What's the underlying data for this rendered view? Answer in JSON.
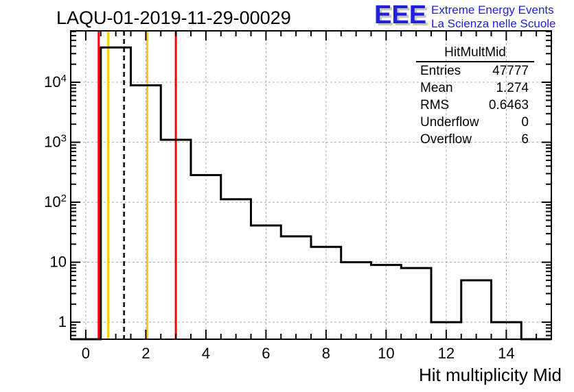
{
  "logo": {
    "acronym": "EEE",
    "line1": "Extreme Energy Events",
    "line2": "La Scienza nelle Scuole",
    "color": "#2020dd",
    "shadow_color": "#c6c6c6"
  },
  "stats": {
    "title": "HitMultMid",
    "rows": [
      {
        "label": "Entries",
        "value": "47777"
      },
      {
        "label": "Mean",
        "value": "1.274"
      },
      {
        "label": "RMS",
        "value": "0.6463"
      },
      {
        "label": "Underflow",
        "value": "0"
      },
      {
        "label": "Overflow",
        "value": "6"
      }
    ]
  },
  "chart_data": {
    "type": "bar",
    "title": "LAQU-01-2019-11-29-00029",
    "xlabel": "Hit multiplicity Mid",
    "ylabel": "",
    "x_range": [
      -0.5,
      15.5
    ],
    "y_range": [
      0.52,
      72000
    ],
    "y_scale": "log",
    "grid": "dashed",
    "grid_color": "#a8a8a8",
    "line_color": "#000000",
    "bin_width": 1,
    "bin_centers": [
      1,
      2,
      3,
      4,
      5,
      6,
      7,
      8,
      9,
      10,
      11,
      12,
      13,
      14,
      15
    ],
    "counts": [
      38000,
      8900,
      1100,
      283,
      112,
      41,
      27,
      18,
      10,
      9,
      8,
      1,
      5,
      1,
      0
    ],
    "x_major_ticks": [
      0,
      2,
      4,
      6,
      8,
      10,
      12,
      14
    ],
    "x_minor_step": 0.5,
    "y_major_ticks": [
      1,
      10,
      100,
      1000,
      10000
    ],
    "marker_lines": [
      {
        "name": "red-low-threshold",
        "x": 0.5,
        "color": "#ff0000",
        "style": "solid"
      },
      {
        "name": "gold-low-threshold",
        "x": 0.75,
        "color": "#ffcc00",
        "style": "solid"
      },
      {
        "name": "mean-line",
        "x": 1.274,
        "color": "#000000",
        "style": "dashed"
      },
      {
        "name": "gold-high-threshold",
        "x": 2.05,
        "color": "#ffcc00",
        "style": "solid"
      },
      {
        "name": "red-high-threshold",
        "x": 3.0,
        "color": "#ff0000",
        "style": "solid"
      }
    ]
  }
}
